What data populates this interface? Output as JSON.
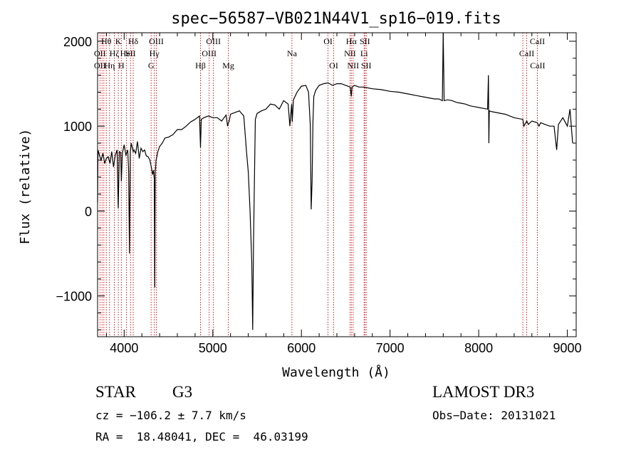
{
  "chart_data": {
    "type": "line",
    "title": "spec−56587−VB021N44V1_sp16−019.fits",
    "xlabel": "Wavelength (Å)",
    "ylabel": "Flux (relative)",
    "xlim": [
      3700,
      9100
    ],
    "ylim": [
      -1480,
      2100
    ],
    "xticks": [
      {
        "value": 4000,
        "label": "4000"
      },
      {
        "value": 5000,
        "label": "5000"
      },
      {
        "value": 6000,
        "label": "6000"
      },
      {
        "value": 7000,
        "label": "7000"
      },
      {
        "value": 8000,
        "label": "8000"
      },
      {
        "value": 9000,
        "label": "9000"
      }
    ],
    "yticks": [
      {
        "value": -1000,
        "label": "−1000"
      },
      {
        "value": 0,
        "label": "0"
      },
      {
        "value": 1000,
        "label": "1000"
      },
      {
        "value": 2000,
        "label": "2000"
      }
    ],
    "series": [
      {
        "x": [
          3700,
          3705,
          3720,
          3740,
          3760,
          3780,
          3800,
          3820,
          3840,
          3860,
          3880,
          3900,
          3920,
          3933,
          3945,
          3960,
          3968,
          3980,
          4000,
          4020,
          4040,
          4050,
          4060,
          4070,
          4080,
          4102,
          4110,
          4130,
          4150,
          4170,
          4190,
          4210,
          4230,
          4250,
          4270,
          4290,
          4310,
          4320,
          4330,
          4340,
          4345,
          4350,
          4355,
          4360,
          4365,
          4380,
          4400,
          4430,
          4460,
          4500,
          4550,
          4600,
          4650,
          4700,
          4750,
          4800,
          4850,
          4861,
          4870,
          4900,
          4950,
          5000,
          5050,
          5100,
          5150,
          5167,
          5175,
          5183,
          5200,
          5250,
          5300,
          5350,
          5380,
          5400,
          5420,
          5440,
          5450,
          5460,
          5470,
          5480,
          5500,
          5550,
          5600,
          5650,
          5700,
          5750,
          5800,
          5850,
          5870,
          5890,
          5896,
          5910,
          5950,
          6000,
          6050,
          6080,
          6100,
          6110,
          6120,
          6130,
          6140,
          6160,
          6200,
          6250,
          6300,
          6350,
          6400,
          6450,
          6500,
          6550,
          6563,
          6570,
          6600,
          6650,
          6700,
          6750,
          6800,
          6900,
          7000,
          7100,
          7200,
          7300,
          7400,
          7500,
          7550,
          7590,
          7600,
          7610,
          7650,
          7700,
          7750,
          7800,
          7850,
          7900,
          7950,
          8000,
          8050,
          8100,
          8110,
          8115,
          8120,
          8150,
          8200,
          8300,
          8400,
          8498,
          8510,
          8542,
          8560,
          8600,
          8662,
          8680,
          8700,
          8750,
          8800,
          8850,
          8880,
          8900,
          8950,
          9000,
          9030,
          9060
        ],
        "y": [
          100,
          720,
          660,
          600,
          680,
          560,
          620,
          640,
          560,
          700,
          520,
          660,
          720,
          30,
          700,
          690,
          350,
          680,
          780,
          660,
          720,
          480,
          -500,
          700,
          800,
          700,
          720,
          680,
          820,
          620,
          740,
          700,
          720,
          650,
          640,
          600,
          500,
          430,
          480,
          380,
          -900,
          480,
          500,
          600,
          620,
          700,
          760,
          800,
          860,
          870,
          900,
          960,
          960,
          1000,
          1050,
          1080,
          1120,
          750,
          1080,
          1100,
          1120,
          1100,
          1100,
          1060,
          1130,
          1000,
          1040,
          1050,
          1140,
          1160,
          1180,
          1120,
          700,
          460,
          20,
          -600,
          -1400,
          -350,
          400,
          1080,
          1150,
          1180,
          1200,
          1260,
          1250,
          1200,
          1300,
          1260,
          1000,
          1260,
          1050,
          1310,
          1400,
          1470,
          1480,
          1400,
          1000,
          20,
          350,
          1050,
          1350,
          1420,
          1480,
          1500,
          1510,
          1480,
          1500,
          1500,
          1480,
          1460,
          1350,
          1460,
          1480,
          1460,
          1460,
          1450,
          1440,
          1430,
          1410,
          1400,
          1380,
          1360,
          1340,
          1320,
          1320,
          1300,
          2100,
          1300,
          1310,
          1300,
          1280,
          1270,
          1260,
          1240,
          1230,
          1220,
          1210,
          1200,
          1600,
          800,
          1180,
          1170,
          1160,
          1140,
          1100,
          1080,
          1000,
          1060,
          1020,
          1060,
          1040,
          1000,
          1040,
          1020,
          1000,
          1000,
          720,
          1020,
          1100,
          1000,
          1200,
          800
        ]
      }
    ],
    "line_labels": [
      {
        "x": 3798,
        "text": "Hθ",
        "row": 1
      },
      {
        "x": 3934,
        "text": "K",
        "row": 1
      },
      {
        "x": 4102,
        "text": "Hδ",
        "row": 1
      },
      {
        "x": 4363,
        "text": "OIII",
        "row": 1
      },
      {
        "x": 5007,
        "text": "OIII",
        "row": 1
      },
      {
        "x": 6300,
        "text": "OI",
        "row": 1
      },
      {
        "x": 6563,
        "text": "Hα",
        "row": 1
      },
      {
        "x": 6716,
        "text": "SII",
        "row": 1
      },
      {
        "x": 8662,
        "text": "CaII",
        "row": 1
      },
      {
        "x": 3727,
        "text": "OII",
        "row": 2
      },
      {
        "x": 3889,
        "text": "Hζ",
        "row": 2
      },
      {
        "x": 4026,
        "text": "HeI",
        "row": 2
      },
      {
        "x": 4072,
        "text": "SII",
        "row": 2
      },
      {
        "x": 4340,
        "text": "Hγ",
        "row": 2
      },
      {
        "x": 4959,
        "text": "OIII",
        "row": 2
      },
      {
        "x": 5893,
        "text": "Na",
        "row": 2
      },
      {
        "x": 6548,
        "text": "NII",
        "row": 2
      },
      {
        "x": 6707,
        "text": "Li",
        "row": 2
      },
      {
        "x": 8542,
        "text": "CaII",
        "row": 2
      },
      {
        "x": 3727,
        "text": "OII",
        "row": 3
      },
      {
        "x": 3835,
        "text": "Hη",
        "row": 3
      },
      {
        "x": 3968,
        "text": "H",
        "row": 3
      },
      {
        "x": 4304,
        "text": "G",
        "row": 3
      },
      {
        "x": 4861,
        "text": "Hβ",
        "row": 3
      },
      {
        "x": 5175,
        "text": "Mg",
        "row": 3
      },
      {
        "x": 6364,
        "text": "OI",
        "row": 3
      },
      {
        "x": 6583,
        "text": "NII",
        "row": 3
      },
      {
        "x": 6731,
        "text": "SII",
        "row": 3
      },
      {
        "x": 8665,
        "text": "CaII",
        "row": 3
      }
    ],
    "line_markers_x": [
      3727,
      3750,
      3771,
      3798,
      3835,
      3889,
      3934,
      3968,
      4026,
      4072,
      4102,
      4304,
      4340,
      4363,
      4861,
      4959,
      5007,
      5175,
      5893,
      6300,
      6364,
      6548,
      6563,
      6583,
      6707,
      6716,
      6731,
      8498,
      8542,
      8662
    ],
    "grid": false,
    "marker_color": "#cc0000",
    "line_color": "#000000"
  },
  "info": {
    "class_label": "STAR",
    "subclass": "G3",
    "survey": "LAMOST DR3",
    "cz_text": "cz = −106.2 ± 7.7 km/s",
    "obs_date_text": "Obs−Date: 20131021",
    "radec_text": "RA =  18.48041, DEC =  46.03199"
  }
}
